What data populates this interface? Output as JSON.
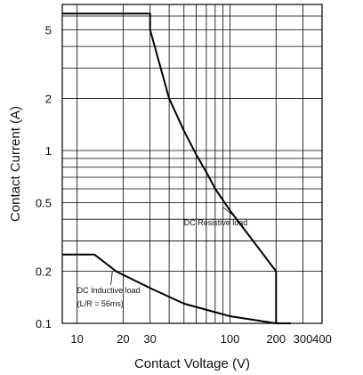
{
  "chart_data": {
    "type": "line",
    "title": "",
    "xlabel": "Contact Voltage (V)",
    "ylabel": "Contact Current (A)",
    "xscale": "log",
    "yscale": "log",
    "xlim": [
      8,
      400
    ],
    "ylim": [
      0.1,
      7
    ],
    "grid": true,
    "x_ticks": [
      {
        "value": 10,
        "label": "10"
      },
      {
        "value": 20,
        "label": "20"
      },
      {
        "value": 30,
        "label": "30"
      },
      {
        "value": 100,
        "label": "100"
      },
      {
        "value": 200,
        "label": "200"
      },
      {
        "value": 300,
        "label": "300"
      },
      {
        "value": 400,
        "label": "400"
      }
    ],
    "y_ticks": [
      {
        "value": 0.1,
        "label": "0.1"
      },
      {
        "value": 0.2,
        "label": "0.2"
      },
      {
        "value": 0.5,
        "label": "0.5"
      },
      {
        "value": 1,
        "label": "1"
      },
      {
        "value": 2,
        "label": "2"
      },
      {
        "value": 5,
        "label": "5"
      }
    ],
    "x_grid": [
      10,
      20,
      30,
      40,
      50,
      60,
      70,
      80,
      90,
      100,
      200,
      300,
      400
    ],
    "y_grid": [
      0.1,
      0.2,
      0.3,
      0.4,
      0.5,
      0.6,
      0.7,
      0.8,
      0.9,
      1,
      2,
      3,
      4,
      5,
      6
    ],
    "series": [
      {
        "name": "DC Resistive load",
        "x": [
          8,
          30,
          30,
          40,
          50,
          60,
          70,
          80,
          100,
          150,
          200,
          200
        ],
        "y": [
          6.2,
          6.2,
          5.0,
          2.0,
          1.3,
          0.95,
          0.75,
          0.6,
          0.45,
          0.28,
          0.2,
          0.1
        ]
      },
      {
        "name": "DC Inductive load (L/R = 56ms)",
        "x": [
          8,
          13,
          18,
          30,
          50,
          100,
          200,
          250
        ],
        "y": [
          0.25,
          0.25,
          0.2,
          0.16,
          0.13,
          0.11,
          0.1,
          0.1
        ]
      }
    ],
    "annotations": [
      {
        "id": "resistive",
        "text": "DC Resistive load",
        "x": 50,
        "y": 0.37,
        "target_x": 90,
        "target_y": 0.47
      },
      {
        "id": "inductive-1",
        "text": "DC Inductive load",
        "x": 10,
        "y": 0.15,
        "target_x": 17,
        "target_y": 0.2
      },
      {
        "id": "inductive-2",
        "text": "(L/R = 56ms)",
        "x": 10,
        "y": 0.125
      }
    ]
  }
}
